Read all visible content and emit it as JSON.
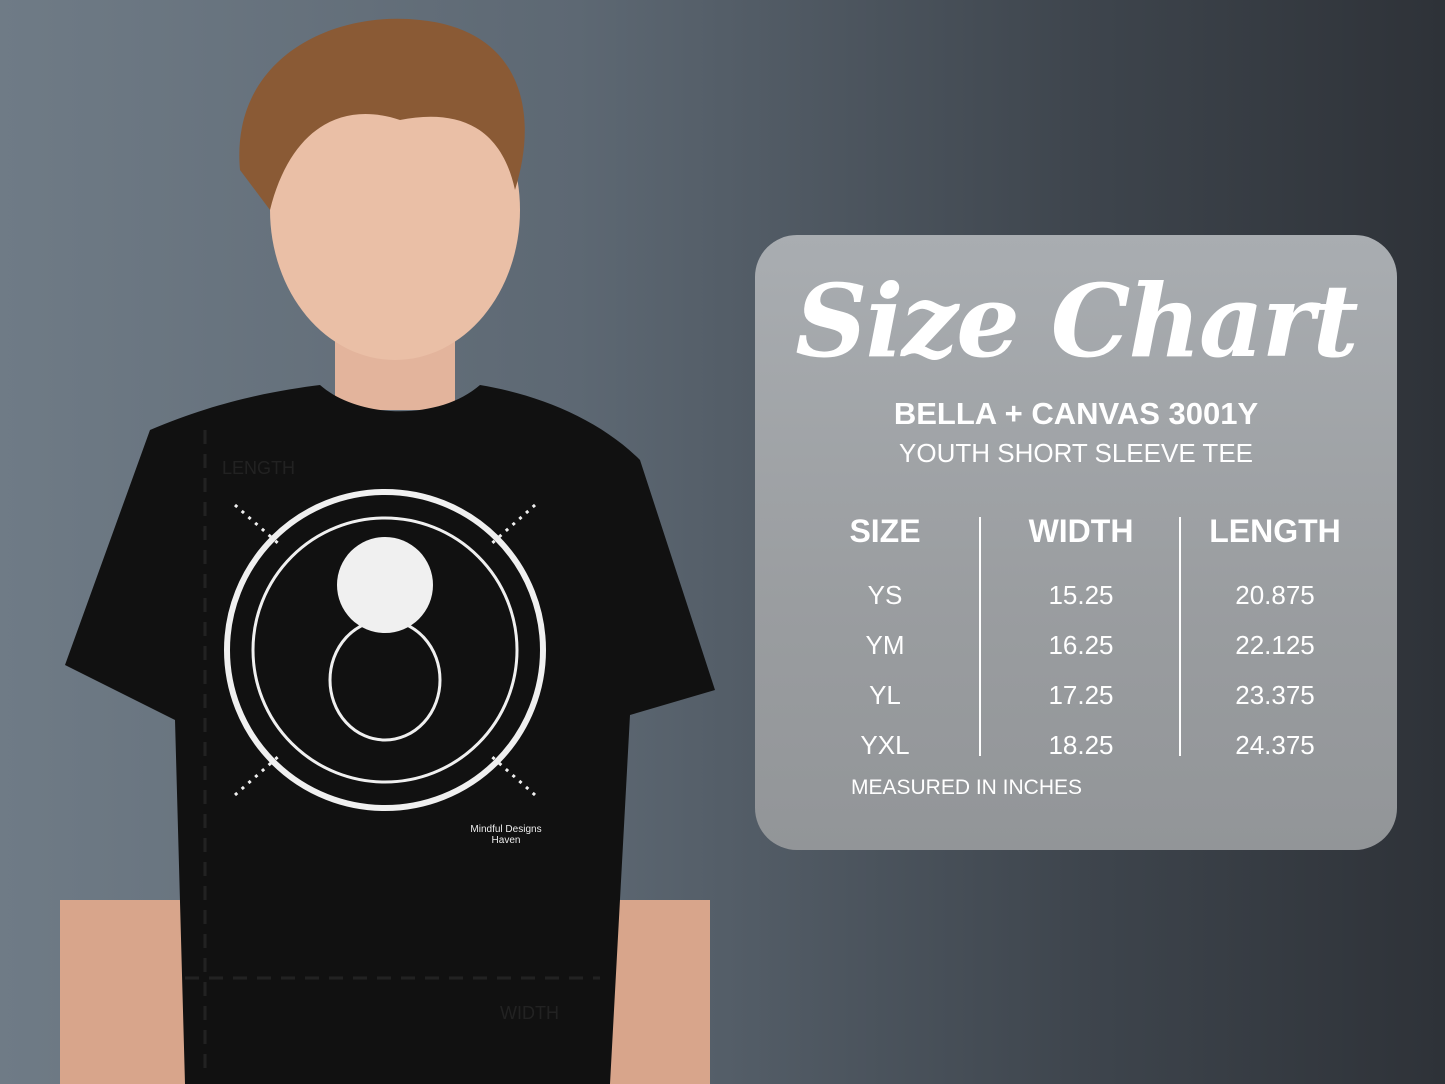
{
  "size_chart": {
    "title": "Size Chart",
    "brand": "BELLA + CANVAS 3001Y",
    "subtitle": "YOUTH SHORT SLEEVE TEE",
    "headers": [
      "SIZE",
      "WIDTH",
      "LENGTH"
    ],
    "rows": [
      [
        "YS",
        "15.25",
        "20.875"
      ],
      [
        "YM",
        "16.25",
        "22.125"
      ],
      [
        "YL",
        "17.25",
        "23.375"
      ],
      [
        "YXL",
        "18.25",
        "24.375"
      ]
    ],
    "footnote": "MEASURED IN INCHES"
  },
  "shirt": {
    "length_label": "LENGTH",
    "width_label": "WIDTH",
    "design_signature": "Mindful Designs Haven",
    "color": "#111111"
  }
}
